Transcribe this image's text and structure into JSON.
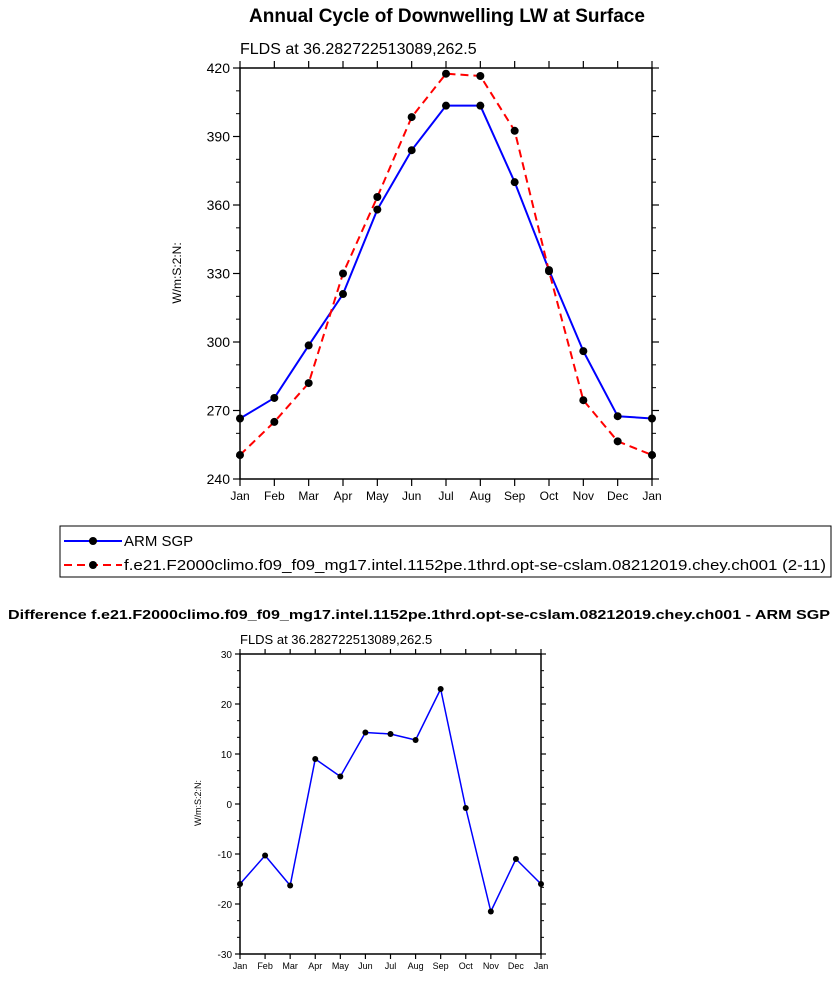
{
  "chart_data": [
    {
      "type": "line",
      "title": "Annual Cycle of Downwelling LW at Surface",
      "subtitle": "FLDS at 36.282722513089,262.5",
      "xlabel": "",
      "ylabel": "W/m:S:2:N:",
      "ylim": [
        240,
        420
      ],
      "yticks": [
        240,
        270,
        300,
        330,
        360,
        390,
        420
      ],
      "categories": [
        "Jan",
        "Feb",
        "Mar",
        "Apr",
        "May",
        "Jun",
        "Jul",
        "Aug",
        "Sep",
        "Oct",
        "Nov",
        "Dec",
        "Jan"
      ],
      "series": [
        {
          "name": "ARM SGP",
          "color": "#0000ff",
          "dash": "solid",
          "values": [
            266.5,
            275.5,
            298.5,
            321,
            358,
            384,
            403.5,
            403.5,
            370,
            331.5,
            296,
            267.5,
            266.5
          ]
        },
        {
          "name": "f.e21.F2000climo.f09_f09_mg17.intel.1152pe.1thrd.opt-se-cslam.08212019.chey.ch001 (2-11)",
          "color": "#ff0000",
          "dash": "dashed",
          "values": [
            250.5,
            265,
            282,
            330,
            363.5,
            398.5,
            417.5,
            416.5,
            392.5,
            331,
            274.5,
            256.5,
            250.5
          ]
        }
      ]
    },
    {
      "type": "line",
      "title": "Difference f.e21.F2000climo.f09_f09_mg17.intel.1152pe.1thrd.opt-se-cslam.08212019.chey.ch001 - ARM SGP",
      "subtitle": "FLDS at 36.282722513089,262.5",
      "xlabel": "",
      "ylabel": "W/m:S:2:N:",
      "ylim": [
        -30,
        30
      ],
      "yticks": [
        -30,
        -20,
        -10,
        0,
        10,
        20,
        30
      ],
      "categories": [
        "Jan",
        "Feb",
        "Mar",
        "Apr",
        "May",
        "Jun",
        "Jul",
        "Aug",
        "Sep",
        "Oct",
        "Nov",
        "Dec",
        "Jan"
      ],
      "series": [
        {
          "name": "Difference",
          "color": "#0000ff",
          "dash": "solid",
          "values": [
            -16,
            -10.3,
            -16.3,
            9,
            5.5,
            14.3,
            14,
            12.8,
            23,
            -0.8,
            -21.5,
            -11,
            -16
          ]
        }
      ]
    }
  ]
}
